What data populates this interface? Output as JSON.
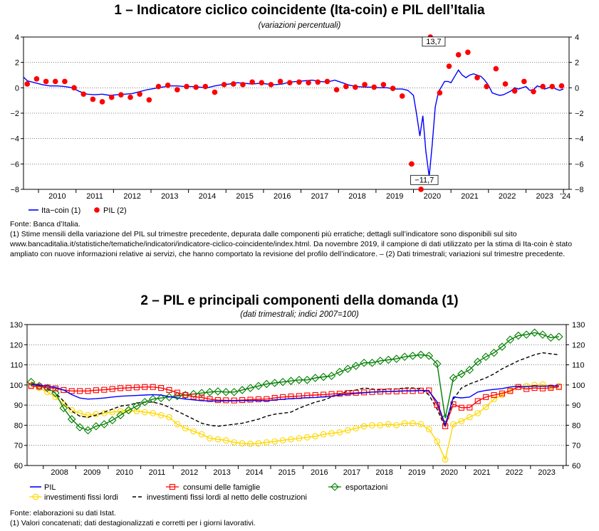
{
  "chart1": {
    "title": "1 – Indicatore ciclico coincidente (Ita-coin) e PIL dell’Italia",
    "subtitle": "(variazioni percentuali)",
    "notes": [
      "Fonte: Banca d’Italia.",
      "(1) Stime mensili della variazione del PIL sul trimestre precedente, depurata dalle componenti più erratiche; dettagli sull’indicatore sono disponibili sul sito www.bancaditalia.it/statistiche/tematiche/indicatori/indicatore-ciclico-coincidente/index.html. Da novembre 2019, il campione di dati utilizzato per la stima di Ita-coin è stato ampliato con nuove informazioni relative ai servizi, che hanno comportato la revisione del profilo dell’indicatore. – (2) Dati trimestrali; variazioni sul trimestre precedente."
    ]
  },
  "chart2": {
    "title": "2 – PIL e principali componenti della domanda (1)",
    "subtitle": "(dati trimestrali; indici 2007=100)",
    "notes": [
      "Fonte: elaborazioni su dati Istat.",
      "(1) Valori concatenati; dati destagionalizzati e corretti per i giorni lavorativi."
    ]
  },
  "chart_data": [
    {
      "type": "line",
      "title": "1 – Indicatore ciclico coincidente (Ita-coin) e PIL dell’Italia",
      "subtitle": "(variazioni percentuali)",
      "ylim": [
        -8,
        4
      ],
      "yticks": [
        -8,
        -6,
        -4,
        -2,
        0,
        2,
        4
      ],
      "xlim": [
        2009.6,
        2024.15
      ],
      "xtick_labels": [
        "2010",
        "2011",
        "2012",
        "2013",
        "2014",
        "2015",
        "2016",
        "2017",
        "2018",
        "2019",
        "2020",
        "2021",
        "2022",
        "2023",
        "’24"
      ],
      "xtick_centers": [
        2010.5,
        2011.5,
        2012.5,
        2013.5,
        2014.5,
        2015.5,
        2016.5,
        2017.5,
        2018.5,
        2019.5,
        2020.5,
        2021.5,
        2022.5,
        2023.5,
        2024.05
      ],
      "annotations": [
        {
          "text": "13,7",
          "x": 2020.54,
          "y": 3.5
        },
        {
          "text": "−11,7",
          "x": 2020.29,
          "y": -7.4
        }
      ],
      "legend": [
        "Ita−coin (1)",
        "PIL (2)"
      ],
      "series": [
        {
          "name": "Ita−coin (1)",
          "color": "#0000ff",
          "x": [
            2009.6,
            2009.7,
            2009.9,
            2010.1,
            2010.3,
            2010.5,
            2010.7,
            2010.9,
            2011.1,
            2011.3,
            2011.5,
            2011.7,
            2011.9,
            2012.1,
            2012.3,
            2012.5,
            2012.7,
            2012.9,
            2013.1,
            2013.3,
            2013.5,
            2013.7,
            2013.9,
            2014.1,
            2014.3,
            2014.5,
            2014.7,
            2014.9,
            2015.1,
            2015.3,
            2015.5,
            2015.7,
            2015.9,
            2016.1,
            2016.3,
            2016.5,
            2016.7,
            2016.9,
            2017.1,
            2017.3,
            2017.5,
            2017.7,
            2017.9,
            2018.1,
            2018.3,
            2018.5,
            2018.7,
            2018.9,
            2019.1,
            2019.3,
            2019.5,
            2019.7,
            2019.85,
            2020.0,
            2020.08,
            2020.17,
            2020.25,
            2020.33,
            2020.42,
            2020.5,
            2020.58,
            2020.67,
            2020.75,
            2020.83,
            2020.92,
            2021.0,
            2021.1,
            2021.2,
            2021.3,
            2021.4,
            2021.5,
            2021.6,
            2021.7,
            2021.8,
            2021.9,
            2022.0,
            2022.1,
            2022.2,
            2022.3,
            2022.4,
            2022.5,
            2022.6,
            2022.7,
            2022.8,
            2022.9,
            2023.0,
            2023.1,
            2023.2,
            2023.3,
            2023.4,
            2023.5,
            2023.6,
            2023.7,
            2023.8,
            2023.9,
            2024.0
          ],
          "y": [
            0.85,
            0.55,
            0.4,
            0.25,
            0.15,
            0.15,
            0.1,
            0.0,
            -0.3,
            -0.5,
            -0.55,
            -0.5,
            -0.6,
            -0.55,
            -0.5,
            -0.45,
            -0.3,
            -0.15,
            -0.05,
            0.05,
            0.15,
            0.15,
            0.1,
            0.1,
            0.05,
            0.0,
            0.15,
            0.25,
            0.3,
            0.4,
            0.35,
            0.3,
            0.35,
            0.3,
            0.25,
            0.3,
            0.45,
            0.5,
            0.55,
            0.6,
            0.5,
            0.45,
            0.6,
            0.4,
            0.2,
            0.1,
            0.05,
            0.05,
            0.0,
            0.0,
            -0.1,
            -0.1,
            -0.2,
            -0.6,
            -2.0,
            -3.8,
            -2.2,
            -5.0,
            -7.0,
            -4.5,
            -1.5,
            -0.3,
            0.1,
            0.5,
            0.5,
            0.4,
            0.9,
            1.4,
            1.0,
            0.8,
            1.0,
            1.1,
            1.0,
            0.9,
            0.6,
            0.2,
            -0.4,
            -0.5,
            -0.6,
            -0.55,
            -0.4,
            -0.25,
            0.0,
            -0.1,
            0.0,
            0.1,
            -0.2,
            -0.15,
            0.15,
            0.05,
            -0.1,
            0.0,
            0.1,
            -0.1,
            -0.2,
            -0.1
          ]
        },
        {
          "name": "PIL (2)",
          "color": "#ff0000",
          "x": [
            2009.7,
            2009.95,
            2010.2,
            2010.45,
            2010.7,
            2010.95,
            2011.2,
            2011.45,
            2011.7,
            2011.95,
            2012.2,
            2012.45,
            2012.7,
            2012.95,
            2013.2,
            2013.45,
            2013.7,
            2013.95,
            2014.2,
            2014.45,
            2014.7,
            2014.95,
            2015.2,
            2015.45,
            2015.7,
            2015.95,
            2016.2,
            2016.45,
            2016.7,
            2016.95,
            2017.2,
            2017.45,
            2017.7,
            2017.95,
            2018.2,
            2018.45,
            2018.7,
            2018.95,
            2019.2,
            2019.45,
            2019.7,
            2019.95,
            2020.2,
            2020.45,
            2020.7,
            2020.95,
            2021.2,
            2021.45,
            2021.7,
            2021.95,
            2022.2,
            2022.45,
            2022.7,
            2022.95,
            2023.2,
            2023.45,
            2023.7,
            2023.95
          ],
          "y": [
            0.3,
            0.7,
            0.5,
            0.5,
            0.5,
            0.0,
            -0.5,
            -0.9,
            -1.1,
            -0.75,
            -0.55,
            -0.75,
            -0.5,
            -0.95,
            0.1,
            0.2,
            -0.15,
            0.1,
            0.05,
            0.1,
            -0.35,
            0.25,
            0.3,
            0.25,
            0.45,
            0.4,
            0.25,
            0.5,
            0.4,
            0.45,
            0.4,
            0.45,
            0.5,
            -0.15,
            0.1,
            0.05,
            0.25,
            0.05,
            0.25,
            -0.05,
            -0.65,
            -6.0,
            -11.7,
            13.7,
            -0.4,
            1.7,
            2.6,
            2.8,
            0.8,
            0.1,
            1.5,
            0.3,
            -0.25,
            0.5,
            -0.3,
            0.1,
            0.1,
            0.15
          ]
        }
      ]
    },
    {
      "type": "line",
      "title": "2 – PIL e principali componenti della domanda (1)",
      "subtitle": "(dati trimestrali; indici 2007=100)",
      "ylim": [
        60,
        130
      ],
      "yticks": [
        60,
        70,
        80,
        90,
        100,
        110,
        120,
        130
      ],
      "xlim": [
        2007.5,
        2024.1
      ],
      "xtick_labels": [
        "2008",
        "2009",
        "2010",
        "2011",
        "2012",
        "2013",
        "2014",
        "2015",
        "2016",
        "2017",
        "2018",
        "2019",
        "2020",
        "2021",
        "2022",
        "2023"
      ],
      "legend": [
        "PIL",
        "consumi delle famiglie",
        "esportazioni",
        "investimenti fissi lordi",
        "investimenti fissi lordi al netto delle costruzioni"
      ],
      "x": [
        2007.625,
        2007.875,
        2008.125,
        2008.375,
        2008.625,
        2008.875,
        2009.125,
        2009.375,
        2009.625,
        2009.875,
        2010.125,
        2010.375,
        2010.625,
        2010.875,
        2011.125,
        2011.375,
        2011.625,
        2011.875,
        2012.125,
        2012.375,
        2012.625,
        2012.875,
        2013.125,
        2013.375,
        2013.625,
        2013.875,
        2014.125,
        2014.375,
        2014.625,
        2014.875,
        2015.125,
        2015.375,
        2015.625,
        2015.875,
        2016.125,
        2016.375,
        2016.625,
        2016.875,
        2017.125,
        2017.375,
        2017.625,
        2017.875,
        2018.125,
        2018.375,
        2018.625,
        2018.875,
        2019.125,
        2019.375,
        2019.625,
        2019.875,
        2020.125,
        2020.375,
        2020.625,
        2020.875,
        2021.125,
        2021.375,
        2021.625,
        2021.875,
        2022.125,
        2022.375,
        2022.625,
        2022.875,
        2023.125,
        2023.375,
        2023.625,
        2023.875
      ],
      "series": [
        {
          "name": "PIL",
          "color": "#0000ff",
          "marker": "none",
          "values": [
            100.2,
            99.8,
            99.5,
            98.8,
            97.5,
            95.2,
            93.5,
            93.0,
            93.2,
            93.5,
            94.0,
            94.4,
            94.6,
            94.8,
            95.0,
            95.2,
            95.0,
            94.2,
            93.6,
            93.0,
            92.6,
            92.2,
            92.1,
            92.0,
            92.1,
            92.1,
            92.2,
            92.2,
            92.3,
            92.2,
            92.6,
            92.9,
            93.2,
            93.4,
            93.7,
            93.8,
            94.1,
            94.5,
            95.0,
            95.4,
            95.8,
            96.1,
            96.5,
            96.6,
            96.8,
            96.9,
            97.1,
            97.1,
            97.3,
            96.9,
            91.6,
            80.2,
            94.0,
            93.6,
            94.0,
            96.5,
            97.3,
            97.8,
            98.2,
            99.0,
            99.4,
            99.1,
            99.5,
            99.4,
            99.5,
            99.6
          ]
        },
        {
          "name": "consumi delle famiglie",
          "color": "#ff0000",
          "marker": "square",
          "values": [
            99.5,
            99.2,
            98.8,
            98.3,
            97.5,
            97.0,
            97.0,
            97.0,
            97.4,
            97.6,
            98.0,
            98.4,
            98.6,
            98.8,
            99.0,
            99.0,
            98.5,
            97.5,
            96.2,
            95.0,
            94.2,
            93.8,
            93.0,
            92.5,
            92.4,
            92.3,
            92.5,
            92.7,
            92.9,
            93.0,
            93.6,
            94.0,
            94.3,
            94.5,
            94.8,
            95.0,
            95.2,
            95.5,
            95.7,
            96.0,
            96.1,
            96.3,
            96.5,
            96.7,
            96.8,
            96.8,
            97.0,
            97.0,
            97.2,
            97.3,
            90.0,
            79.5,
            90.4,
            88.7,
            88.8,
            92.0,
            94.0,
            95.0,
            95.8,
            97.0,
            99.0,
            98.0,
            98.5,
            98.3,
            98.6,
            99.0
          ]
        },
        {
          "name": "esportazioni",
          "color": "#008000",
          "marker": "diamond",
          "values": [
            101.5,
            99.5,
            98.5,
            96.0,
            88.5,
            83.0,
            79.0,
            77.5,
            79.5,
            80.5,
            82.5,
            85.0,
            87.5,
            89.5,
            91.5,
            93.0,
            93.5,
            94.0,
            94.5,
            95.0,
            95.5,
            96.0,
            96.5,
            96.8,
            96.5,
            96.5,
            97.5,
            98.5,
            99.5,
            100.5,
            101.0,
            101.5,
            102.0,
            102.5,
            102.5,
            103.5,
            104.0,
            104.5,
            106.5,
            108.0,
            109.5,
            111.0,
            111.0,
            112.0,
            112.5,
            113.0,
            114.0,
            114.5,
            115.0,
            114.5,
            110.5,
            83.5,
            103.5,
            105.5,
            107.5,
            111.5,
            114.0,
            116.0,
            119.0,
            122.5,
            124.5,
            125.0,
            126.0,
            125.0,
            123.5,
            124.0
          ]
        },
        {
          "name": "investimenti fissi lordi",
          "color": "#ffd700",
          "marker": "circle",
          "values": [
            99.8,
            98.5,
            96.5,
            94.0,
            90.5,
            87.5,
            86.0,
            85.0,
            85.5,
            86.0,
            86.5,
            87.0,
            87.2,
            87.0,
            86.5,
            86.0,
            85.0,
            84.0,
            80.5,
            78.5,
            77.0,
            75.5,
            73.5,
            73.0,
            72.5,
            71.5,
            71.0,
            70.8,
            71.0,
            71.5,
            72.0,
            72.5,
            73.0,
            73.5,
            74.0,
            74.5,
            75.5,
            76.0,
            76.5,
            77.5,
            78.5,
            79.5,
            80.0,
            80.0,
            80.5,
            80.0,
            81.0,
            81.0,
            80.5,
            78.0,
            72.0,
            63.0,
            80.5,
            82.0,
            84.0,
            86.0,
            89.0,
            93.0,
            95.0,
            97.5,
            99.0,
            99.5,
            100.0,
            100.3,
            99.0,
            99.5
          ]
        },
        {
          "name": "investimenti fissi lordi al netto delle costruzioni",
          "color": "#000000",
          "marker": "none",
          "dash": true,
          "values": [
            100.5,
            100.0,
            98.0,
            96.0,
            92.0,
            87.0,
            84.5,
            84.0,
            85.0,
            86.5,
            88.0,
            89.5,
            90.0,
            91.0,
            91.5,
            91.5,
            90.5,
            89.0,
            87.0,
            85.0,
            83.0,
            81.0,
            80.0,
            79.5,
            80.0,
            80.5,
            81.0,
            82.0,
            83.0,
            84.5,
            85.5,
            86.0,
            86.5,
            88.5,
            90.0,
            91.5,
            92.5,
            94.0,
            95.5,
            97.0,
            97.5,
            98.5,
            98.0,
            97.5,
            98.0,
            98.0,
            98.5,
            98.5,
            98.0,
            95.0,
            88.0,
            79.0,
            93.0,
            98.5,
            100.5,
            102.0,
            103.5,
            105.5,
            108.0,
            110.0,
            112.0,
            113.5,
            115.0,
            116.0,
            115.5,
            115.0
          ]
        }
      ]
    }
  ]
}
